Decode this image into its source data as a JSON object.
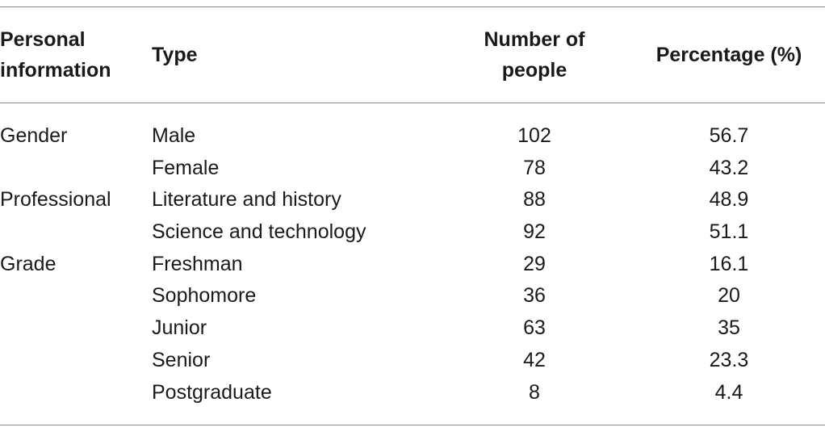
{
  "table": {
    "headers": {
      "personal_line1": "Personal",
      "personal_line2": "information",
      "type": "Type",
      "number_line1": "Number of",
      "number_line2": "people",
      "percentage": "Percentage (%)"
    },
    "rows": [
      {
        "personal": "Gender",
        "type": "Male",
        "number": "102",
        "percentage": "56.7"
      },
      {
        "personal": "",
        "type": "Female",
        "number": "78",
        "percentage": "43.2"
      },
      {
        "personal": "Professional",
        "type": "Literature and history",
        "number": "88",
        "percentage": "48.9"
      },
      {
        "personal": "",
        "type": "Science and technology",
        "number": "92",
        "percentage": "51.1"
      },
      {
        "personal": "Grade",
        "type": "Freshman",
        "number": "29",
        "percentage": "16.1"
      },
      {
        "personal": "",
        "type": "Sophomore",
        "number": "36",
        "percentage": "20"
      },
      {
        "personal": "",
        "type": "Junior",
        "number": "63",
        "percentage": "35"
      },
      {
        "personal": "",
        "type": "Senior",
        "number": "42",
        "percentage": "23.3"
      },
      {
        "personal": "",
        "type": "Postgraduate",
        "number": "8",
        "percentage": "4.4"
      }
    ]
  }
}
